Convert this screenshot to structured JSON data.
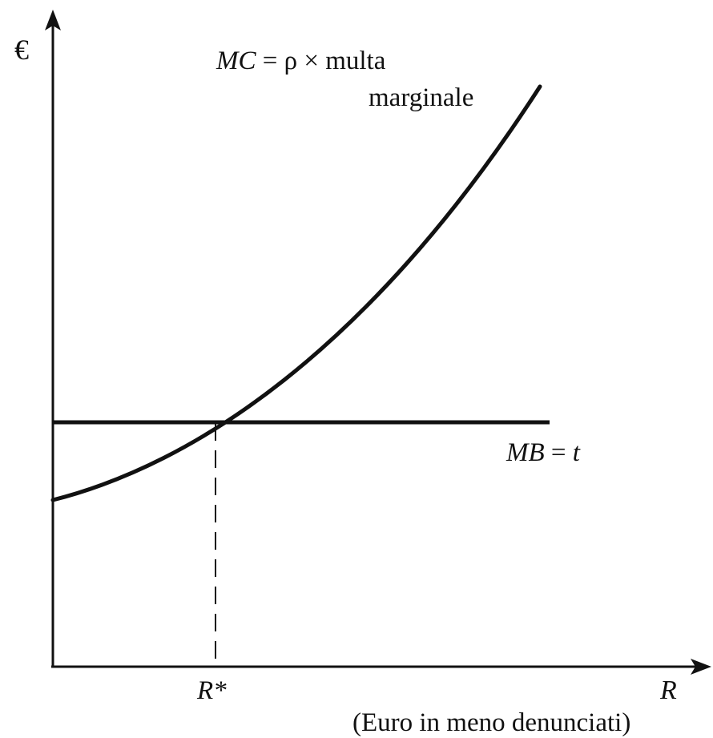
{
  "y_axis": {
    "label": "€"
  },
  "x_axis": {
    "label": "R",
    "caption": "(Euro in meno denunciati)"
  },
  "equilibrium": {
    "label": "R*"
  },
  "mc_curve": {
    "name_prefix": "MC",
    "equals": " = ",
    "rho": "ρ",
    "times": " × ",
    "rest": "multa",
    "line2": "marginale"
  },
  "mb_line": {
    "label_prefix": "MB",
    "equals": " = ",
    "label_var": "t"
  },
  "colors": {
    "ink": "#111111",
    "background": "#ffffff"
  }
}
